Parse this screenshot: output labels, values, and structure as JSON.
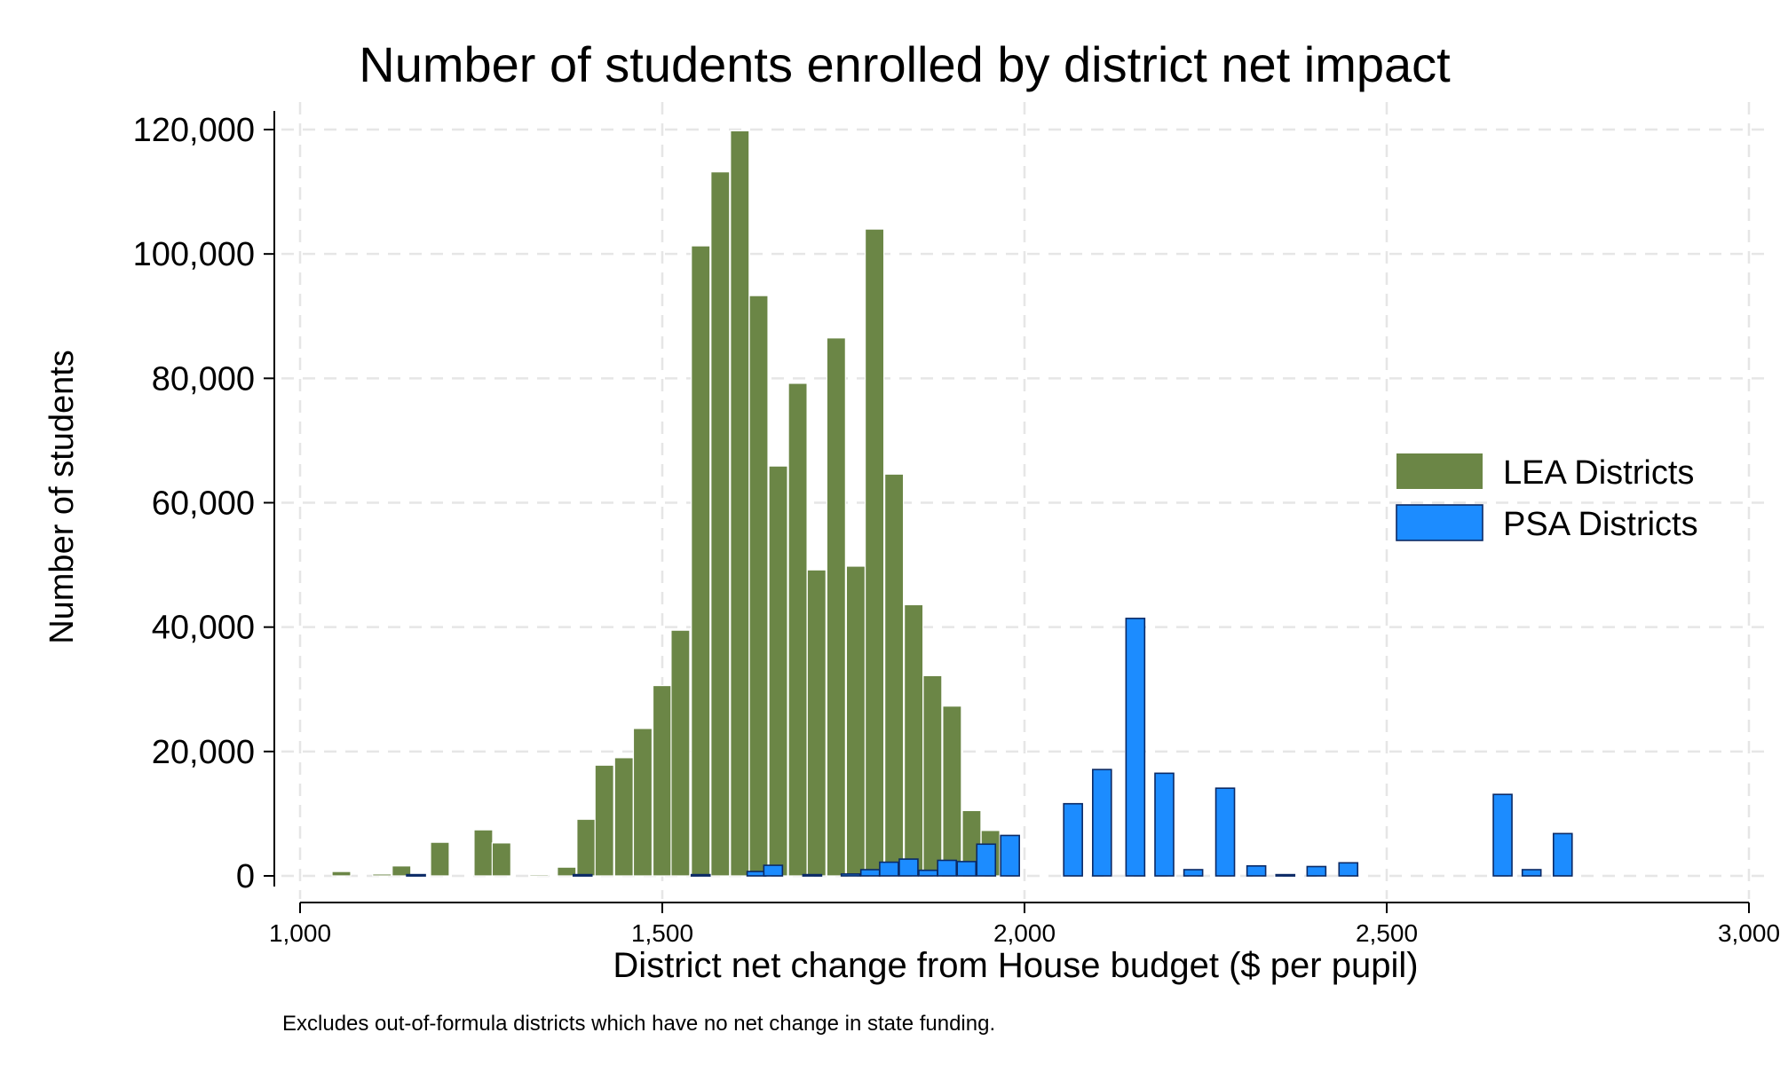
{
  "chart_data": {
    "type": "bar",
    "title": "Number of students enrolled by district net impact",
    "xlabel": "District net change from House budget ($ per pupil)",
    "ylabel": "Number of students",
    "note": "Excludes out-of-formula districts which have no net change in state funding.",
    "xlim": [
      1000,
      3000
    ],
    "ylim": [
      -3500,
      123000
    ],
    "x_ticks": [
      1000,
      1500,
      2000,
      2500,
      3000
    ],
    "x_tick_labels": [
      "1,000",
      "1,500",
      "2,000",
      "2,500",
      "3,000"
    ],
    "y_ticks": [
      0,
      20000,
      40000,
      60000,
      80000,
      100000,
      120000
    ],
    "y_tick_labels": [
      "0",
      "20,000",
      "40,000",
      "60,000",
      "80,000",
      "100,000",
      "120,000"
    ],
    "grid": true,
    "legend_position": "right",
    "series": [
      {
        "name": "LEA Districts",
        "color": "#6b8646",
        "x": [
          1057,
          1113,
          1140,
          1193,
          1253,
          1278,
          1330,
          1368,
          1395,
          1420,
          1447,
          1473,
          1500,
          1525,
          1553,
          1580,
          1607,
          1633,
          1660,
          1687,
          1713,
          1740,
          1767,
          1793,
          1820,
          1847,
          1873,
          1900,
          1927
        ],
        "values": [
          700,
          300,
          1600,
          5400,
          7400,
          5300,
          200,
          1400,
          9100,
          17800,
          19000,
          23700,
          30600,
          39500,
          101300,
          113200,
          119800,
          93300,
          65900,
          79200,
          49200,
          86500,
          49800,
          104000,
          64600,
          43600,
          32200,
          27300,
          10500
        ]
      },
      {
        "name": "LEA Districts",
        "color": "#6b8646",
        "x": [
          1953,
          1980
        ],
        "values": [
          7300,
          4000
        ]
      },
      {
        "name": "PSA Districts",
        "color": "#1c8cff",
        "x": [
          1160,
          1390,
          1553,
          1630,
          1653,
          1707,
          1760,
          1787,
          1813,
          1840,
          1867,
          1893,
          1920,
          1947,
          1980,
          2067,
          2107,
          2153,
          2193,
          2233,
          2277,
          2320,
          2360,
          2403,
          2447,
          2660,
          2700,
          2743,
          2787,
          2830
        ],
        "values": [
          200,
          200,
          200,
          700,
          1700,
          200,
          300,
          1000,
          2200,
          2700,
          900,
          2500,
          2300,
          5100,
          6500,
          11600,
          17100,
          41400,
          16500,
          1000,
          14100,
          1600,
          200,
          1500,
          2100,
          13100,
          1000,
          6800,
          0,
          0
        ]
      }
    ],
    "legend": [
      {
        "label": "LEA Districts",
        "color": "#6b8646"
      },
      {
        "label": "PSA Districts",
        "color": "#1c8cff"
      }
    ]
  }
}
